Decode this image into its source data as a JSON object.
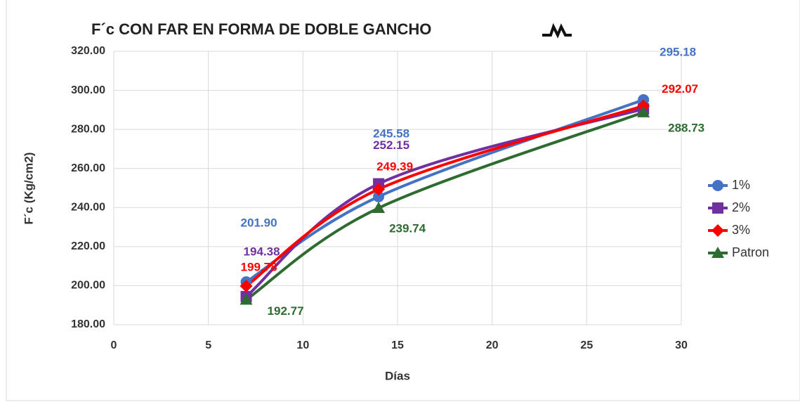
{
  "chart_data": {
    "type": "line",
    "title": "F´c  CON FAR EN FORMA DE DOBLE GANCHO",
    "x_label": "Días",
    "y_label": "F´c (Kg/cm2)",
    "x": [
      7,
      14,
      28
    ],
    "series": [
      {
        "name": "1%",
        "color": "#4472c4",
        "marker": "circle",
        "values": [
          201.9,
          245.58,
          295.18
        ],
        "value_labels": [
          "201.90",
          "245.58",
          "295.18"
        ]
      },
      {
        "name": "2%",
        "color": "#7030a0",
        "marker": "square",
        "values": [
          194.38,
          252.15,
          290.5
        ],
        "value_labels": [
          "194.38",
          "252.15",
          null
        ]
      },
      {
        "name": "3%",
        "color": "#ff0000",
        "marker": "diamond",
        "values": [
          199.78,
          249.39,
          292.07
        ],
        "value_labels": [
          "199.78",
          "249.39",
          "292.07"
        ]
      },
      {
        "name": "Patron",
        "color": "#2e6b30",
        "marker": "triangle",
        "values": [
          192.77,
          239.74,
          288.73
        ],
        "value_labels": [
          "192.77",
          "239.74",
          "288.73"
        ]
      }
    ],
    "xlim": [
      0,
      30
    ],
    "xticks": [
      0,
      5,
      10,
      15,
      20,
      25,
      30
    ],
    "ylim": [
      180,
      320
    ],
    "yticks": [
      {
        "value": 180,
        "label": "180.00"
      },
      {
        "value": 200,
        "label": "200.00"
      },
      {
        "value": 220,
        "label": "220.00"
      },
      {
        "value": 240,
        "label": "240.00"
      },
      {
        "value": 260,
        "label": "260.00"
      },
      {
        "value": 280,
        "label": "280.00"
      },
      {
        "value": 300,
        "label": "300.00"
      },
      {
        "value": 320,
        "label": "320.00"
      }
    ],
    "grid": true,
    "legend": "right",
    "smooth": true
  }
}
